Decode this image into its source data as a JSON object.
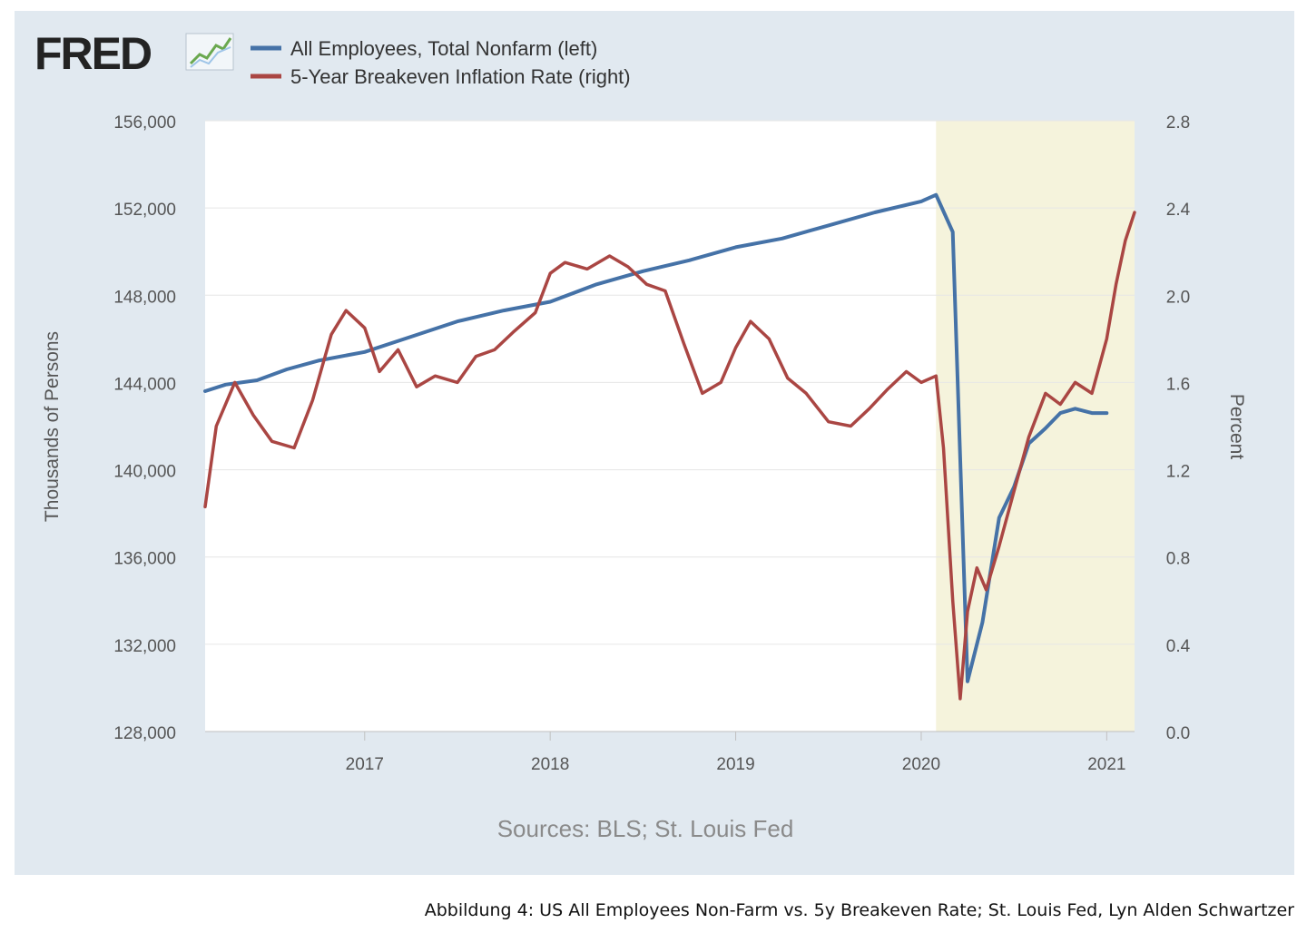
{
  "logo": {
    "text": "FRED"
  },
  "caption": "Abbildung 4: US All Employees Non-Farm vs. 5y Breakeven Rate; St. Louis Fed, Lyn Alden Schwartzer",
  "chart_data": {
    "type": "line",
    "title": "",
    "xlabel": "",
    "ylabel_left": "Thousands of Persons",
    "ylabel_right": "Percent",
    "source": "Sources: BLS; St. Louis Fed",
    "x_range": [
      2016.14,
      2021.15
    ],
    "x_ticks": [
      2017,
      2018,
      2019,
      2020,
      2021
    ],
    "x_tick_labels": [
      "2017",
      "2018",
      "2019",
      "2020",
      "2021"
    ],
    "y_left_range": [
      128000,
      156000
    ],
    "y_left_ticks": [
      128000,
      132000,
      136000,
      140000,
      144000,
      148000,
      152000,
      156000
    ],
    "y_left_tick_labels": [
      "128,000",
      "132,000",
      "136,000",
      "140,000",
      "144,000",
      "148,000",
      "152,000",
      "156,000"
    ],
    "y_right_range": [
      0.0,
      2.8
    ],
    "y_right_ticks": [
      0.0,
      0.4,
      0.8,
      1.2,
      1.6,
      2.0,
      2.4,
      2.8
    ],
    "y_right_tick_labels": [
      "0.0",
      "0.4",
      "0.8",
      "1.2",
      "1.6",
      "2.0",
      "2.4",
      "2.8"
    ],
    "recession_shading": {
      "start": 2020.08,
      "end": 2021.15,
      "color": "#f5f3dc"
    },
    "colors": {
      "series_left": "#4572a7",
      "series_right": "#aa4643",
      "grid": "#e6e6e6",
      "tick_text": "#555555",
      "source_text": "#8a8a8a"
    },
    "series": [
      {
        "name": "All Employees, Total Nonfarm (left)",
        "axis": "left",
        "color": "#4572a7",
        "x": [
          2016.14,
          2016.25,
          2016.42,
          2016.58,
          2016.75,
          2017.0,
          2017.25,
          2017.5,
          2017.75,
          2018.0,
          2018.25,
          2018.5,
          2018.75,
          2019.0,
          2019.25,
          2019.5,
          2019.75,
          2020.0,
          2020.08,
          2020.17,
          2020.25,
          2020.33,
          2020.42,
          2020.5,
          2020.58,
          2020.67,
          2020.75,
          2020.83,
          2020.92,
          2021.0
        ],
        "values": [
          143600,
          143900,
          144100,
          144600,
          145000,
          145400,
          146100,
          146800,
          147300,
          147700,
          148500,
          149100,
          149600,
          150200,
          150600,
          151200,
          151800,
          152300,
          152600,
          150900,
          130300,
          133000,
          137800,
          139200,
          141200,
          141900,
          142600,
          142800,
          142600,
          142600
        ]
      },
      {
        "name": "5-Year Breakeven Inflation Rate (right)",
        "axis": "right",
        "color": "#aa4643",
        "x": [
          2016.14,
          2016.2,
          2016.3,
          2016.4,
          2016.5,
          2016.62,
          2016.72,
          2016.82,
          2016.9,
          2017.0,
          2017.08,
          2017.18,
          2017.28,
          2017.38,
          2017.5,
          2017.6,
          2017.7,
          2017.8,
          2017.92,
          2018.0,
          2018.08,
          2018.2,
          2018.32,
          2018.42,
          2018.52,
          2018.62,
          2018.72,
          2018.82,
          2018.92,
          2019.0,
          2019.08,
          2019.18,
          2019.28,
          2019.38,
          2019.5,
          2019.62,
          2019.72,
          2019.82,
          2019.92,
          2020.0,
          2020.08,
          2020.12,
          2020.17,
          2020.21,
          2020.25,
          2020.3,
          2020.35,
          2020.42,
          2020.5,
          2020.58,
          2020.67,
          2020.75,
          2020.83,
          2020.92,
          2021.0,
          2021.05,
          2021.1,
          2021.15
        ],
        "values": [
          1.03,
          1.4,
          1.6,
          1.45,
          1.33,
          1.3,
          1.52,
          1.82,
          1.93,
          1.85,
          1.65,
          1.75,
          1.58,
          1.63,
          1.6,
          1.72,
          1.75,
          1.83,
          1.92,
          2.1,
          2.15,
          2.12,
          2.18,
          2.13,
          2.05,
          2.02,
          1.78,
          1.55,
          1.6,
          1.76,
          1.88,
          1.8,
          1.62,
          1.55,
          1.42,
          1.4,
          1.48,
          1.57,
          1.65,
          1.6,
          1.63,
          1.3,
          0.6,
          0.15,
          0.55,
          0.75,
          0.65,
          0.85,
          1.1,
          1.35,
          1.55,
          1.5,
          1.6,
          1.55,
          1.8,
          2.05,
          2.25,
          2.38
        ]
      }
    ]
  }
}
